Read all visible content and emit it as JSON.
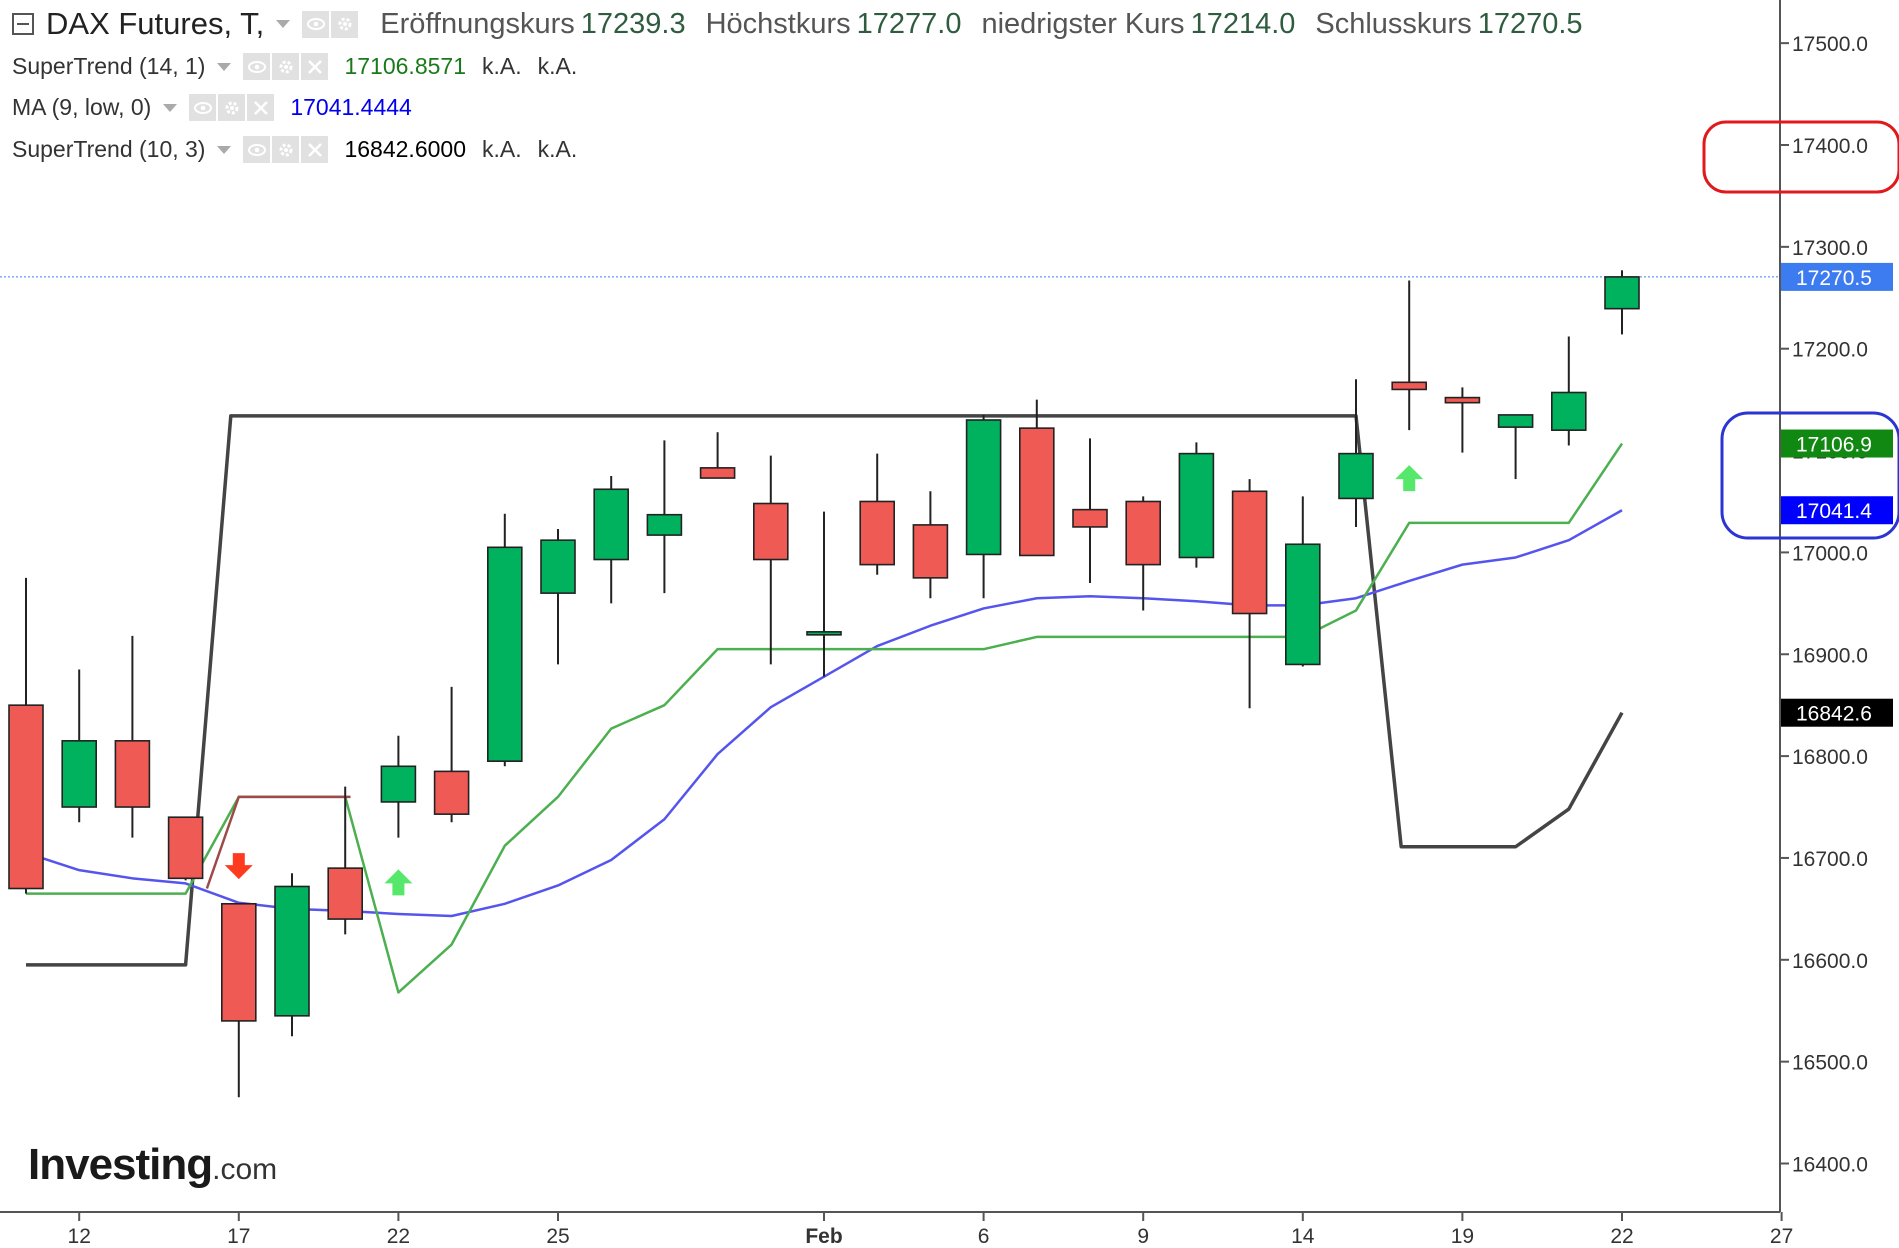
{
  "legend": {
    "title": "DAX Futures, T,",
    "ohlc": [
      {
        "label": "Eröffnungskurs",
        "value": "17239.3"
      },
      {
        "label": "Höchstkurs",
        "value": "17277.0"
      },
      {
        "label": "niedrigster Kurs",
        "value": "17214.0"
      },
      {
        "label": "Schlusskurs",
        "value": "17270.5"
      }
    ],
    "indicators": [
      {
        "name": "SuperTrend (14, 1)",
        "value": "17106.8571",
        "extra1": "k.A.",
        "extra2": "k.A.",
        "color": "#1a7a1a"
      },
      {
        "name": "MA (9, low, 0)",
        "value": "17041.4444",
        "extra1": "",
        "extra2": "",
        "color": "#0000ee"
      },
      {
        "name": "SuperTrend (10, 3)",
        "value": "16842.6000",
        "extra1": "k.A.",
        "extra2": "k.A.",
        "color": "#000000"
      }
    ]
  },
  "logo": {
    "text": "Investing",
    "suffix": ".com"
  },
  "colors": {
    "up": "#00b25e",
    "down": "#f05a55",
    "candle_border": "#222222",
    "ma_line": "#5555ee",
    "st14_line": "#4caf50",
    "st14_line_red": "#9c4a4a",
    "st10_line": "#444444",
    "axis": "#555555",
    "tag_price": "#3d7cf0",
    "tag_st14": "#118811",
    "tag_ma": "#0000ff",
    "tag_st10": "#000000",
    "arrow_up": "#55e86a",
    "arrow_down": "#ff3b1f",
    "circle_red": "#e0191d",
    "circle_blue": "#2b35d1"
  },
  "chart_data": {
    "type": "candlestick",
    "y_ticks": [
      "17500.0",
      "17400.0",
      "17300.0",
      "17200.0",
      "17100.0",
      "17000.0",
      "16900.0",
      "16800.0",
      "16700.0",
      "16600.0",
      "16500.0",
      "16400.0"
    ],
    "x_ticks": [
      {
        "label": "12",
        "slot": 1
      },
      {
        "label": "17",
        "slot": 4
      },
      {
        "label": "22",
        "slot": 7
      },
      {
        "label": "25",
        "slot": 10
      },
      {
        "label": "Feb",
        "slot": 15
      },
      {
        "label": "6",
        "slot": 18
      },
      {
        "label": "9",
        "slot": 21
      },
      {
        "label": "14",
        "slot": 24
      },
      {
        "label": "19",
        "slot": 27
      },
      {
        "label": "22",
        "slot": 30
      },
      {
        "label": "27",
        "slot": 33
      }
    ],
    "candles": [
      {
        "o": 16850,
        "h": 16975,
        "l": 16665,
        "c": 16670
      },
      {
        "o": 16750,
        "h": 16885,
        "l": 16735,
        "c": 16815
      },
      {
        "o": 16815,
        "h": 16918,
        "l": 16720,
        "c": 16750
      },
      {
        "o": 16740,
        "h": 16740,
        "l": 16678,
        "c": 16680
      },
      {
        "o": 16655,
        "h": 16655,
        "l": 16465,
        "c": 16540
      },
      {
        "o": 16545,
        "h": 16685,
        "l": 16525,
        "c": 16672
      },
      {
        "o": 16690,
        "h": 16770,
        "l": 16625,
        "c": 16640
      },
      {
        "o": 16755,
        "h": 16820,
        "l": 16720,
        "c": 16790
      },
      {
        "o": 16785,
        "h": 16868,
        "l": 16735,
        "c": 16743
      },
      {
        "o": 16795,
        "h": 17038,
        "l": 16790,
        "c": 17005
      },
      {
        "o": 16960,
        "h": 17023,
        "l": 16890,
        "c": 17012
      },
      {
        "o": 16993,
        "h": 17075,
        "l": 16950,
        "c": 17062
      },
      {
        "o": 17017,
        "h": 17110,
        "l": 16960,
        "c": 17037
      },
      {
        "o": 17083,
        "h": 17118,
        "l": 17075,
        "c": 17073
      },
      {
        "o": 17048,
        "h": 17095,
        "l": 16890,
        "c": 16993
      },
      {
        "o": 16922,
        "h": 17040,
        "l": 16878,
        "c": 16922
      },
      {
        "o": 17050,
        "h": 17097,
        "l": 16978,
        "c": 16988
      },
      {
        "o": 17027,
        "h": 17060,
        "l": 16955,
        "c": 16975
      },
      {
        "o": 16998,
        "h": 17135,
        "l": 16955,
        "c": 17130
      },
      {
        "o": 17122,
        "h": 17150,
        "l": 17000,
        "c": 16997
      },
      {
        "o": 17042,
        "h": 17112,
        "l": 16970,
        "c": 17025
      },
      {
        "o": 17050,
        "h": 17055,
        "l": 16943,
        "c": 16988
      },
      {
        "o": 16995,
        "h": 17108,
        "l": 16985,
        "c": 17097
      },
      {
        "o": 17060,
        "h": 17072,
        "l": 16847,
        "c": 16940
      },
      {
        "o": 16890,
        "h": 17055,
        "l": 16888,
        "c": 17008
      },
      {
        "o": 17053,
        "h": 17170,
        "l": 17025,
        "c": 17097
      },
      {
        "o": 17167,
        "h": 17267,
        "l": 17120,
        "c": 17160
      },
      {
        "o": 17152,
        "h": 17162,
        "l": 17098,
        "c": 17147
      },
      {
        "o": 17123,
        "h": 17134,
        "l": 17072,
        "c": 17135
      },
      {
        "o": 17120,
        "h": 17212,
        "l": 17105,
        "c": 17157
      },
      {
        "o": 17239.3,
        "h": 17277,
        "l": 17214,
        "c": 17270.5
      }
    ],
    "ma": [
      16705,
      16688,
      16680,
      16675,
      16656,
      16650,
      16648,
      16645,
      16643,
      16655,
      16673,
      16698,
      16738,
      16802,
      16848,
      16878,
      16908,
      16928,
      16945,
      16955,
      16957,
      16955,
      16952,
      16948,
      16948,
      16955,
      16972,
      16988,
      16995,
      17012,
      17041.4
    ],
    "supertrend_14": [
      16665,
      16665,
      16665,
      16665,
      16760,
      16760,
      16760,
      16568,
      16615,
      16712,
      16760,
      16827,
      16850,
      16905,
      16905,
      16905,
      16905,
      16905,
      16905,
      16917,
      16917,
      16917,
      16917,
      16917,
      16917,
      16943,
      17029,
      17029,
      17029,
      17029,
      17106.9
    ],
    "supertrend_14_red_segment": {
      "start": 3.5,
      "end": 6.5,
      "value": 16760
    },
    "supertrend_10": [
      16595,
      16595,
      16595,
      16595,
      17134,
      17134,
      17134,
      17134,
      17134,
      17134,
      17134,
      17134,
      17134,
      17134,
      17134,
      17134,
      17134,
      17134,
      17134,
      17134,
      17134,
      17134,
      17134,
      17134,
      17134,
      17134,
      16711,
      16711,
      16711,
      16748,
      16842.6
    ],
    "st10_break": {
      "x_from": 3.0,
      "x_to": 3.95
    },
    "signals": [
      {
        "slot": 4,
        "dir": "down",
        "price": 16693
      },
      {
        "slot": 7,
        "dir": "up",
        "price": 16675
      },
      {
        "slot": 26,
        "dir": "up",
        "price": 17072
      }
    ],
    "last_price_label": "17270.5",
    "st14_label": "17106.9",
    "ma_label": "17041.4",
    "st10_label": "16842.6"
  }
}
